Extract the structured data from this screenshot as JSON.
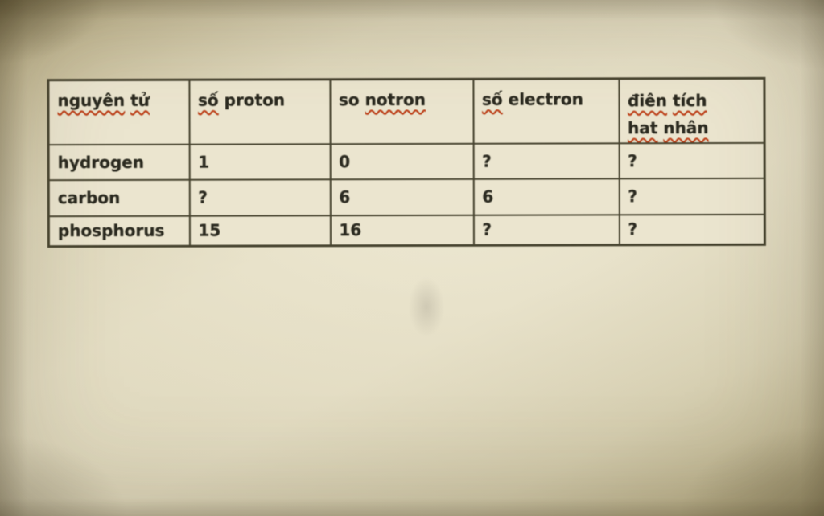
{
  "document": {
    "kind": "photographed word-processor table about atoms",
    "background_color": "#d8d1b6",
    "table_background": "#ebe5cf",
    "border_color": "#46432f",
    "text_color": "#2b2a20",
    "spellcheck_squiggle_color": "#c34018"
  },
  "table": {
    "headers": [
      {
        "words": [
          "nguyên",
          "tử"
        ],
        "misspelled": [
          true,
          true
        ]
      },
      {
        "words": [
          "số",
          "proton"
        ],
        "misspelled": [
          true,
          false
        ]
      },
      {
        "words": [
          "so",
          "notron"
        ],
        "misspelled": [
          false,
          true
        ]
      },
      {
        "words": [
          "số",
          "electron"
        ],
        "misspelled": [
          true,
          false
        ]
      },
      {
        "line1": [
          "điên",
          "tích"
        ],
        "line2": [
          "hat",
          "nhân"
        ],
        "misspelled": [
          true,
          true,
          true,
          true
        ]
      }
    ],
    "rows": [
      [
        "hydrogen",
        "1",
        "0",
        "?",
        "?"
      ],
      [
        "carbon",
        "?",
        "6",
        "6",
        "?"
      ],
      [
        "phosphorus",
        "15",
        "16",
        "?",
        "?"
      ]
    ]
  }
}
